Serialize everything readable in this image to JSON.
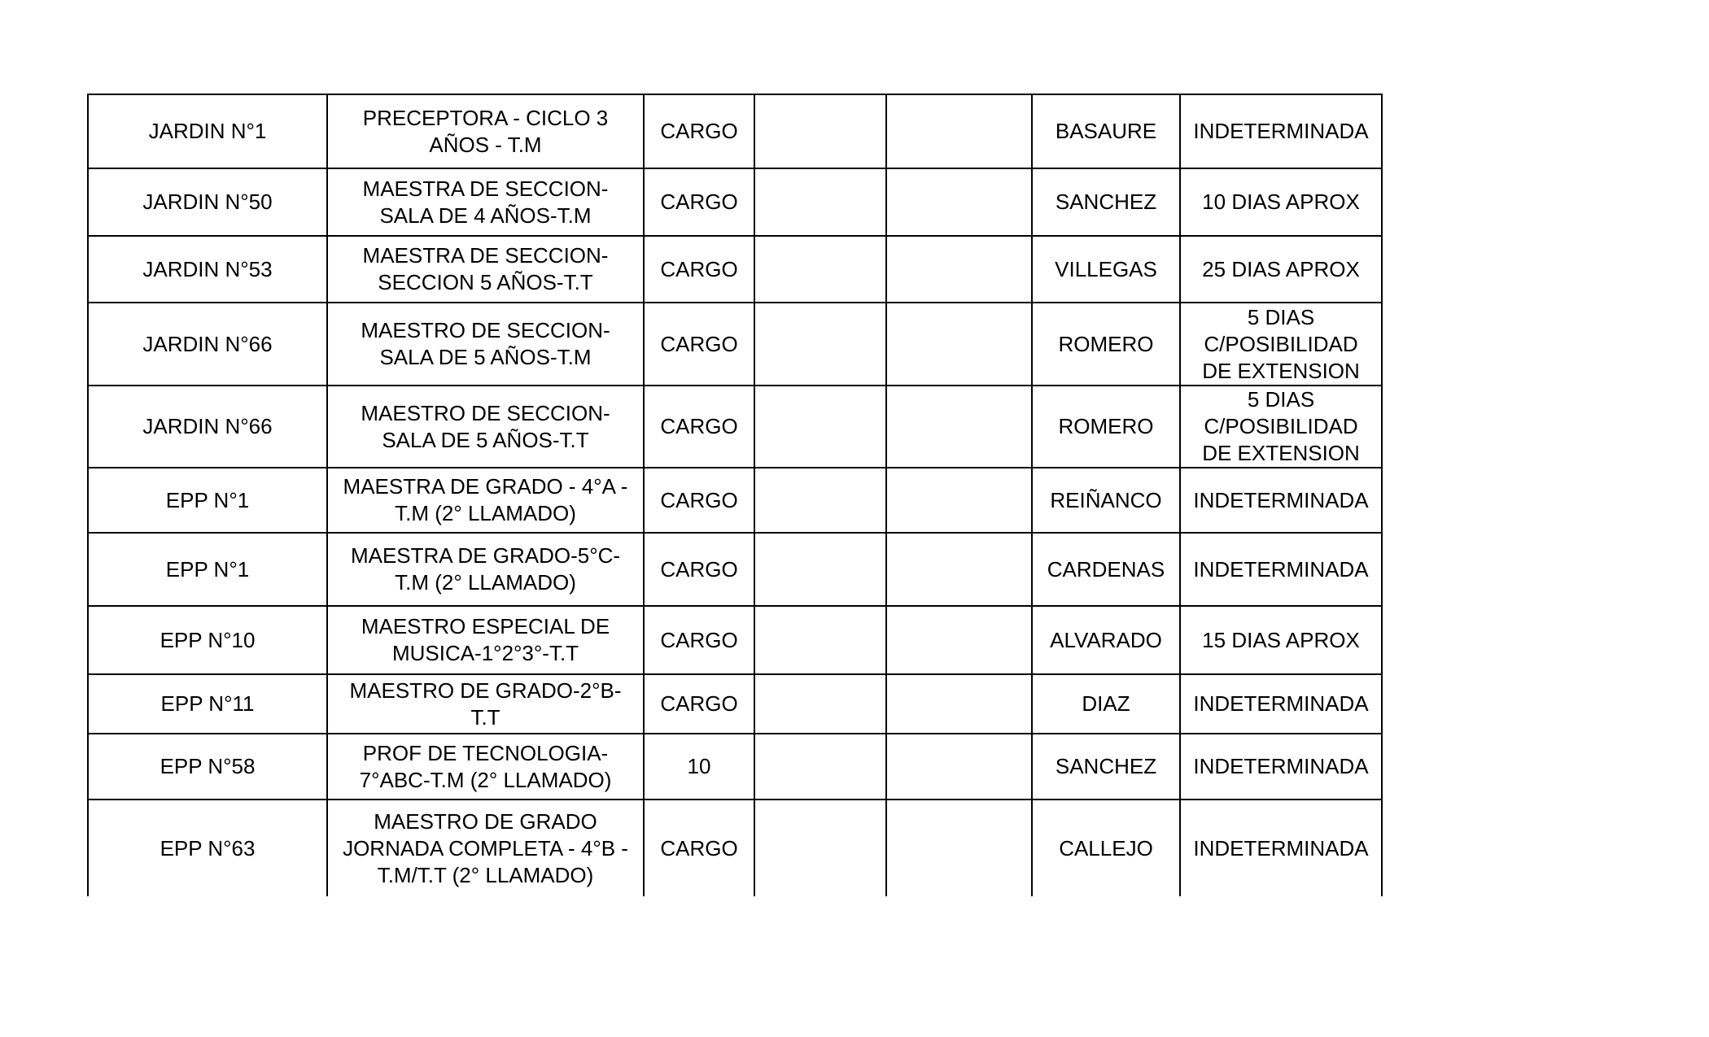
{
  "table": {
    "rows": [
      [
        "JARDIN N°1",
        "PRECEPTORA - CICLO 3\nAÑOS - T.M",
        "CARGO",
        "",
        "",
        "BASAURE",
        "INDETERMINADA"
      ],
      [
        "JARDIN N°50",
        "MAESTRA DE SECCION-\nSALA DE 4 AÑOS-T.M",
        "CARGO",
        "",
        "",
        "SANCHEZ",
        "10 DIAS APROX"
      ],
      [
        "JARDIN N°53",
        "MAESTRA DE SECCION-\nSECCION 5 AÑOS-T.T",
        "CARGO",
        "",
        "",
        "VILLEGAS",
        "25 DIAS APROX"
      ],
      [
        "JARDIN N°66",
        "MAESTRO DE SECCION-\nSALA DE 5 AÑOS-T.M",
        "CARGO",
        "",
        "",
        "ROMERO",
        "5 DIAS\nC/POSIBILIDAD\nDE EXTENSION"
      ],
      [
        "JARDIN N°66",
        "MAESTRO DE SECCION-\nSALA DE 5 AÑOS-T.T",
        "CARGO",
        "",
        "",
        "ROMERO",
        "5 DIAS\nC/POSIBILIDAD\nDE EXTENSION"
      ],
      [
        "EPP N°1",
        "MAESTRA DE GRADO - 4°A -\nT.M (2° LLAMADO)",
        "CARGO",
        "",
        "",
        "REIÑANCO",
        "INDETERMINADA"
      ],
      [
        "EPP N°1",
        "MAESTRA DE GRADO-5°C-\nT.M (2° LLAMADO)",
        "CARGO",
        "",
        "",
        "CARDENAS",
        "INDETERMINADA"
      ],
      [
        "EPP N°10",
        "MAESTRO ESPECIAL DE\nMUSICA-1°2°3°-T.T",
        "CARGO",
        "",
        "",
        "ALVARADO",
        "15 DIAS APROX"
      ],
      [
        "EPP N°11",
        "MAESTRO DE GRADO-2°B-\nT.T",
        "CARGO",
        "",
        "",
        "DIAZ",
        "INDETERMINADA"
      ],
      [
        "EPP N°58",
        "PROF DE TECNOLOGIA-\n7°ABC-T.M (2° LLAMADO)",
        "10",
        "",
        "",
        "SANCHEZ",
        "INDETERMINADA"
      ],
      [
        "EPP N°63",
        "MAESTRO DE GRADO\nJORNADA COMPLETA - 4°B -\nT.M/T.T (2° LLAMADO)",
        "CARGO",
        "",
        "",
        "CALLEJO",
        "INDETERMINADA"
      ]
    ]
  }
}
